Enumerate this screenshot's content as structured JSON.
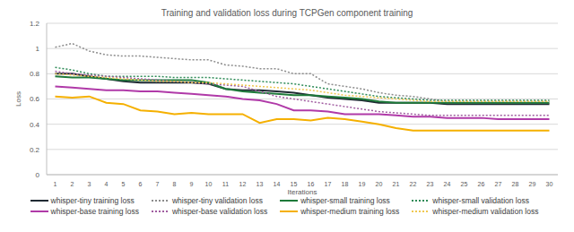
{
  "chart_data": {
    "type": "line",
    "title": "Training and validation loss during TCPGen component training",
    "x_label": "Iterations",
    "y_label": "Loss",
    "x": [
      1,
      2,
      3,
      4,
      5,
      6,
      7,
      8,
      9,
      10,
      11,
      12,
      13,
      14,
      15,
      16,
      17,
      18,
      19,
      20,
      21,
      22,
      23,
      24,
      25,
      26,
      27,
      28,
      29,
      30
    ],
    "xlim": [
      0.5,
      30.5
    ],
    "xticks": [
      1,
      2,
      3,
      4,
      5,
      6,
      7,
      8,
      9,
      10,
      11,
      12,
      13,
      14,
      15,
      16,
      17,
      18,
      19,
      20,
      21,
      22,
      23,
      24,
      25,
      26,
      27,
      28,
      29,
      30
    ],
    "ylim": [
      0,
      1.2
    ],
    "yticks": [
      0,
      0.2,
      0.4,
      0.6,
      0.8,
      1,
      1.2
    ],
    "grid": true,
    "legend": "bottom",
    "series": [
      {
        "name": "whisper-tiny training loss",
        "color": "#1f2a33",
        "line_style": "solid",
        "values": [
          0.8,
          0.8,
          0.78,
          0.76,
          0.74,
          0.73,
          0.73,
          0.73,
          0.73,
          0.72,
          0.68,
          0.67,
          0.67,
          0.66,
          0.65,
          0.63,
          0.61,
          0.6,
          0.59,
          0.57,
          0.57,
          0.57,
          0.57,
          0.56,
          0.56,
          0.56,
          0.56,
          0.56,
          0.56,
          0.56
        ]
      },
      {
        "name": "whisper-tiny validation loss",
        "color": "#8c8c8c",
        "line_style": "dotted",
        "values": [
          1.01,
          1.04,
          0.98,
          0.95,
          0.94,
          0.94,
          0.93,
          0.92,
          0.91,
          0.91,
          0.87,
          0.86,
          0.84,
          0.84,
          0.8,
          0.8,
          0.72,
          0.7,
          0.68,
          0.65,
          0.63,
          0.62,
          0.6,
          0.58,
          0.58,
          0.58,
          0.58,
          0.58,
          0.58,
          0.58
        ]
      },
      {
        "name": "whisper-small training loss",
        "color": "#1e7a3a",
        "line_style": "solid",
        "values": [
          0.78,
          0.77,
          0.77,
          0.76,
          0.75,
          0.75,
          0.75,
          0.75,
          0.75,
          0.73,
          0.68,
          0.66,
          0.65,
          0.64,
          0.63,
          0.63,
          0.62,
          0.61,
          0.6,
          0.58,
          0.57,
          0.57,
          0.57,
          0.57,
          0.57,
          0.57,
          0.57,
          0.57,
          0.57,
          0.57
        ]
      },
      {
        "name": "whisper-small validation loss",
        "color": "#2e8b57",
        "line_style": "dotted",
        "values": [
          0.85,
          0.83,
          0.8,
          0.78,
          0.78,
          0.78,
          0.78,
          0.77,
          0.77,
          0.77,
          0.76,
          0.75,
          0.74,
          0.73,
          0.72,
          0.7,
          0.68,
          0.66,
          0.64,
          0.62,
          0.61,
          0.6,
          0.59,
          0.59,
          0.59,
          0.59,
          0.59,
          0.59,
          0.59,
          0.59
        ]
      },
      {
        "name": "whisper-base training loss",
        "color": "#b03aa8",
        "line_style": "solid",
        "values": [
          0.7,
          0.69,
          0.68,
          0.67,
          0.67,
          0.66,
          0.66,
          0.65,
          0.64,
          0.63,
          0.62,
          0.6,
          0.59,
          0.56,
          0.51,
          0.51,
          0.5,
          0.48,
          0.48,
          0.48,
          0.47,
          0.46,
          0.46,
          0.45,
          0.45,
          0.45,
          0.44,
          0.44,
          0.44,
          0.44
        ]
      },
      {
        "name": "whisper-base validation loss",
        "color": "#a05ca0",
        "line_style": "dotted",
        "values": [
          0.82,
          0.8,
          0.79,
          0.78,
          0.77,
          0.76,
          0.75,
          0.74,
          0.73,
          0.72,
          0.71,
          0.7,
          0.66,
          0.62,
          0.6,
          0.58,
          0.56,
          0.54,
          0.52,
          0.5,
          0.49,
          0.48,
          0.47,
          0.47,
          0.47,
          0.47,
          0.47,
          0.47,
          0.47,
          0.47
        ]
      },
      {
        "name": "whisper-medium training loss",
        "color": "#f5b000",
        "line_style": "solid",
        "values": [
          0.62,
          0.61,
          0.62,
          0.57,
          0.56,
          0.51,
          0.5,
          0.48,
          0.49,
          0.48,
          0.48,
          0.48,
          0.41,
          0.44,
          0.44,
          0.43,
          0.45,
          0.44,
          0.42,
          0.4,
          0.37,
          0.35,
          0.35,
          0.35,
          0.35,
          0.35,
          0.35,
          0.35,
          0.35,
          0.35
        ]
      },
      {
        "name": "whisper-medium validation loss",
        "color": "#f0c850",
        "line_style": "dotted",
        "values": [
          0.8,
          0.79,
          0.78,
          0.77,
          0.76,
          0.75,
          0.74,
          0.74,
          0.73,
          0.73,
          0.72,
          0.71,
          0.7,
          0.69,
          0.68,
          0.67,
          0.65,
          0.63,
          0.62,
          0.61,
          0.6,
          0.59,
          0.58,
          0.58,
          0.58,
          0.58,
          0.58,
          0.58,
          0.58,
          0.58
        ]
      }
    ]
  }
}
